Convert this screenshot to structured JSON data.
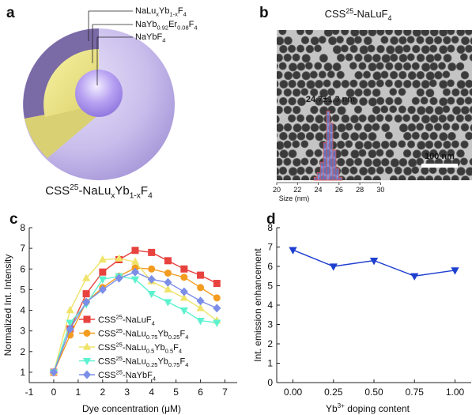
{
  "diagram": {
    "label": "a",
    "layers": [
      [
        {
          "t": "NaLu"
        },
        {
          "t": "x",
          "sub": true
        },
        {
          "t": "Yb"
        },
        {
          "t": "1-x",
          "sub": true
        },
        {
          "t": "F"
        },
        {
          "t": "4",
          "sub": true
        }
      ],
      [
        {
          "t": "NaYb"
        },
        {
          "t": "0.92",
          "sub": true
        },
        {
          "t": "Er"
        },
        {
          "t": "0.08",
          "sub": true
        },
        {
          "t": "F"
        },
        {
          "t": "4",
          "sub": true
        }
      ],
      [
        {
          "t": "NaYbF"
        },
        {
          "t": "4",
          "sub": true
        }
      ]
    ],
    "caption": [
      {
        "t": "CSS"
      },
      {
        "t": "25",
        "sup": true
      },
      {
        "t": "-NaLu"
      },
      {
        "t": "x",
        "sub": true
      },
      {
        "t": "Yb"
      },
      {
        "t": "1-x",
        "sub": true
      },
      {
        "t": "F"
      },
      {
        "t": "4",
        "sub": true
      }
    ]
  },
  "chart_data": [
    {
      "type": "histogram",
      "label": "b",
      "title": [
        {
          "t": "CSS"
        },
        {
          "t": "25",
          "sup": true
        },
        {
          "t": "-NaLuF"
        },
        {
          "t": "4",
          "sub": true
        }
      ],
      "annotation": "24.7±1.3 nm",
      "scale_bar": "100 nm",
      "bins": [
        23.6,
        23.9,
        24.2,
        24.5,
        24.8,
        25.1,
        25.4,
        25.7,
        26.0,
        26.3
      ],
      "counts": [
        2,
        5,
        12,
        25,
        46,
        38,
        20,
        8,
        2
      ],
      "color": "#6f86e0",
      "edge_color": "#e05050",
      "xlim": [
        20,
        38.8
      ],
      "ylim": [
        0,
        100
      ],
      "xticks": [
        20,
        22,
        24,
        26,
        28,
        30
      ],
      "xlabel": "Size (nm)"
    },
    {
      "type": "line",
      "label": "c",
      "xlabel": "Dye concentration (μM)",
      "ylabel": "Normalized Int. Intensity",
      "xlim": [
        -1,
        7.5
      ],
      "ylim": [
        0.5,
        8
      ],
      "xticks": [
        -1,
        0,
        1,
        2,
        3,
        4,
        5,
        6,
        7
      ],
      "yticks": [
        1,
        2,
        3,
        4,
        5,
        6,
        7,
        8
      ],
      "x": [
        0,
        0.67,
        1.33,
        2,
        2.67,
        3.33,
        4,
        4.67,
        5.33,
        6,
        6.67
      ],
      "series": [
        {
          "name": [
            {
              "t": "CSS"
            },
            {
              "t": "25",
              "sup": true
            },
            {
              "t": "-NaLuF"
            },
            {
              "t": "4",
              "sub": true
            }
          ],
          "color": "#e8423f",
          "marker": "square",
          "values": [
            1,
            3.1,
            4.8,
            5.85,
            6.45,
            6.9,
            6.8,
            6.4,
            6.0,
            5.7,
            5.3
          ]
        },
        {
          "name": [
            {
              "t": "CSS"
            },
            {
              "t": "25",
              "sup": true
            },
            {
              "t": "-NaLu"
            },
            {
              "t": "0.75",
              "sub": true
            },
            {
              "t": "Yb"
            },
            {
              "t": "0.25",
              "sub": true
            },
            {
              "t": "F"
            },
            {
              "t": "4",
              "sub": true
            }
          ],
          "color": "#f39c1f",
          "marker": "circle",
          "values": [
            1,
            2.8,
            4.4,
            5.1,
            5.65,
            6.05,
            6.0,
            5.8,
            5.6,
            5.1,
            4.6
          ]
        },
        {
          "name": [
            {
              "t": "CSS"
            },
            {
              "t": "25",
              "sup": true
            },
            {
              "t": "-NaLu"
            },
            {
              "t": "0.5",
              "sub": true
            },
            {
              "t": "Yb"
            },
            {
              "t": "0.5",
              "sub": true
            },
            {
              "t": "F"
            },
            {
              "t": "4",
              "sub": true
            }
          ],
          "color": "#efe36a",
          "marker": "triangle-up",
          "values": [
            1,
            4.0,
            5.55,
            6.45,
            6.5,
            6.35,
            5.4,
            5.0,
            4.6,
            4.1,
            3.5
          ]
        },
        {
          "name": [
            {
              "t": "CSS"
            },
            {
              "t": "25",
              "sup": true
            },
            {
              "t": "-NaLu"
            },
            {
              "t": "0.25",
              "sub": true
            },
            {
              "t": "Yb"
            },
            {
              "t": "0.75",
              "sub": true
            },
            {
              "t": "F"
            },
            {
              "t": "4",
              "sub": true
            }
          ],
          "color": "#5df2cf",
          "marker": "triangle-down",
          "values": [
            1,
            3.4,
            4.3,
            5.5,
            5.65,
            5.5,
            4.8,
            4.4,
            4.0,
            3.5,
            3.4
          ]
        },
        {
          "name": [
            {
              "t": "CSS"
            },
            {
              "t": "25",
              "sup": true
            },
            {
              "t": "-NaYbF"
            },
            {
              "t": "4",
              "sub": true
            }
          ],
          "color": "#7b8ee8",
          "marker": "diamond",
          "values": [
            1,
            3.1,
            4.4,
            5.0,
            5.55,
            5.85,
            5.5,
            5.35,
            4.9,
            4.45,
            4.1
          ]
        }
      ]
    },
    {
      "type": "line",
      "label": "d",
      "xlabel": [
        {
          "t": "Yb"
        },
        {
          "t": "3+",
          "sup": true
        },
        {
          "t": " doping content"
        }
      ],
      "ylabel": "Int. emission enhancement",
      "xlim": [
        -0.1,
        1.1
      ],
      "ylim": [
        0,
        8
      ],
      "xticks": [
        {
          "value": 0,
          "label": "0.00"
        },
        0.25,
        {
          "value": 0.5,
          "label": "0.50"
        },
        0.75,
        {
          "value": 1,
          "label": "1.00"
        }
      ],
      "yticks": [
        0,
        1,
        2,
        3,
        4,
        5,
        6,
        7,
        8
      ],
      "x": [
        0,
        0.25,
        0.5,
        0.75,
        1
      ],
      "series": [
        {
          "color": "#1f3fd0",
          "marker": "triangle-down",
          "values": [
            6.85,
            6.0,
            6.3,
            5.5,
            5.8
          ]
        }
      ]
    }
  ]
}
